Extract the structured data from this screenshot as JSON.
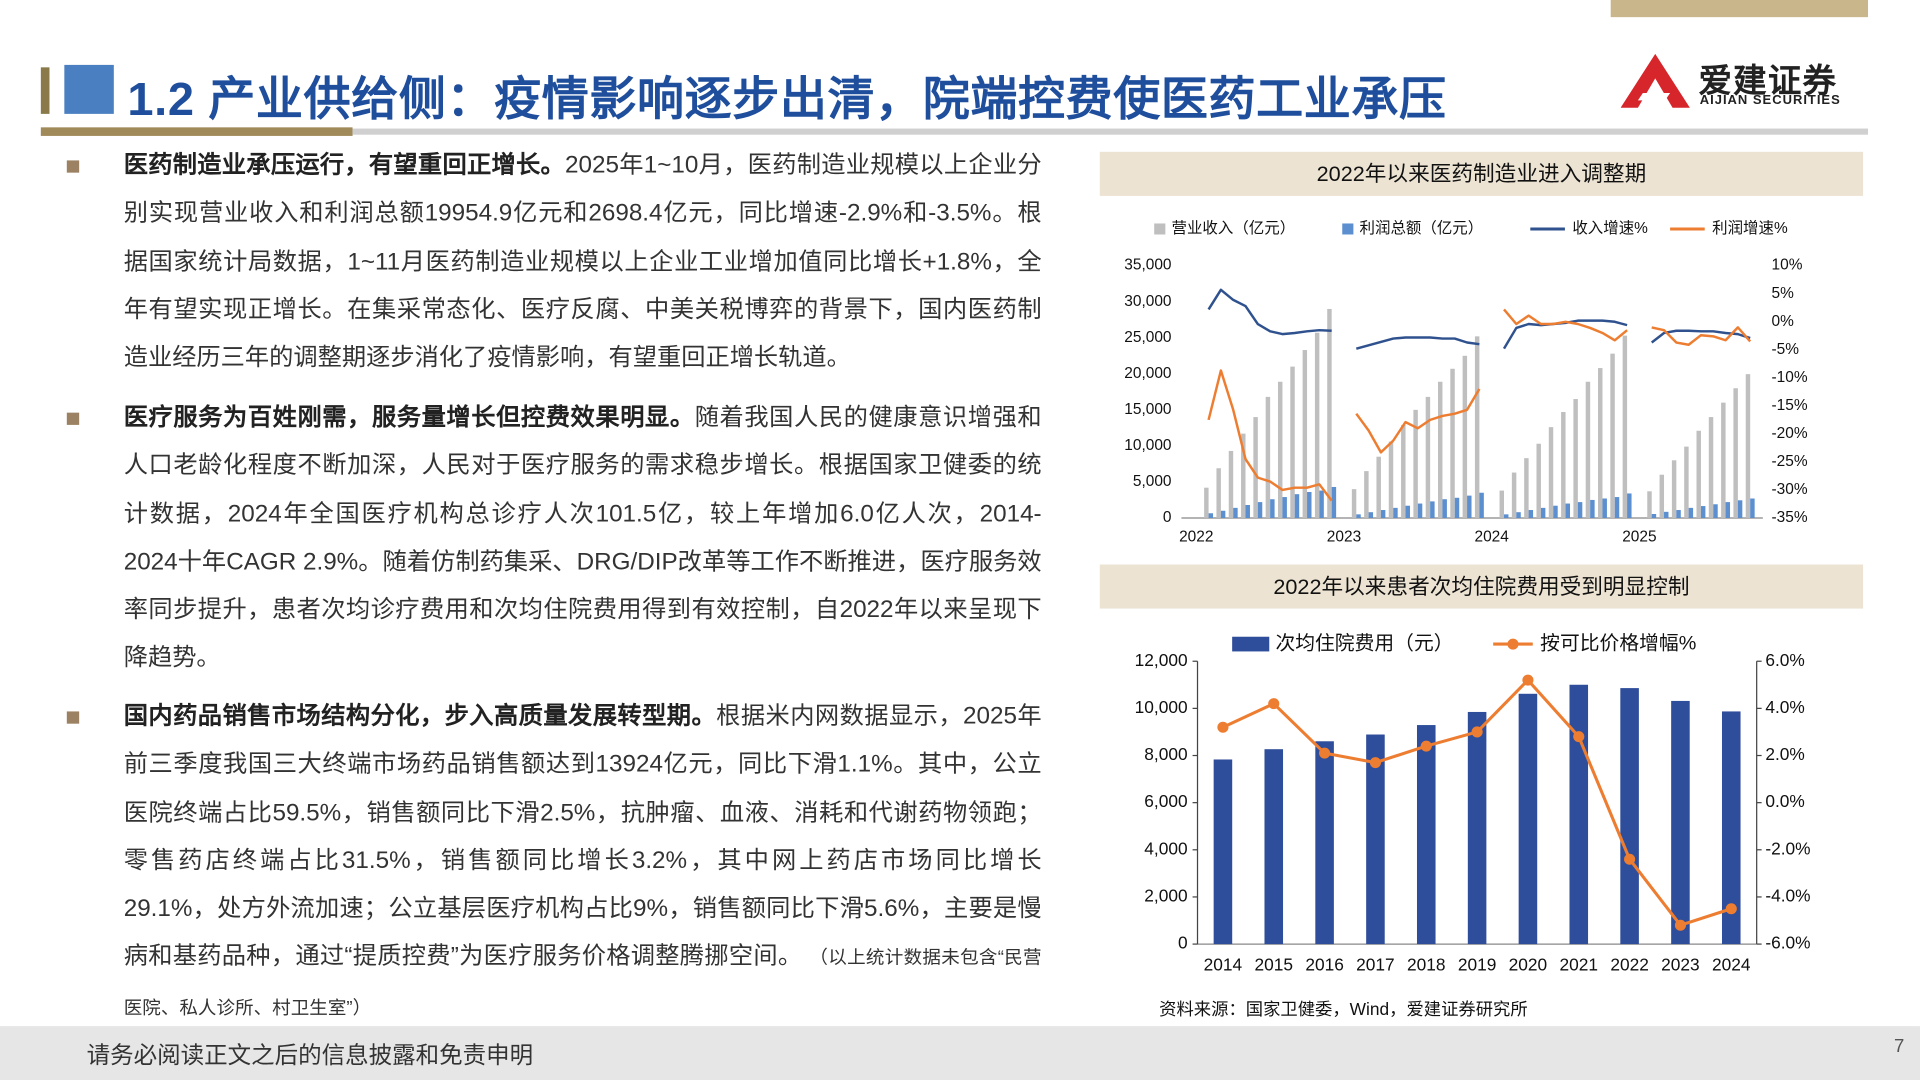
{
  "header": {
    "title": "1.2 产业供给侧：疫情影响逐步出清，院端控费使医药工业承压",
    "logo_cn": "爱建证券",
    "logo_en": "AIJIAN SECURITIES"
  },
  "bullets": [
    {
      "lead": "医药制造业承压运行，有望重回正增长。",
      "body": "2025年1~10月，医药制造业规模以上企业分别实现营业收入和利润总额19954.9亿元和2698.4亿元，同比增速-2.9%和-3.5%。根据国家统计局数据，1~11月医药制造业规模以上企业工业增加值同比增长+1.8%，全年有望实现正增长。在集采常态化、医疗反腐、中美关税博弈的背景下，国内医药制造业经历三年的调整期逐步消化了疫情影响，有望重回正增长轨道。"
    },
    {
      "lead": "医疗服务为百姓刚需，服务量增长但控费效果明显。",
      "body": "随着我国人民的健康意识增强和人口老龄化程度不断加深，人民对于医疗服务的需求稳步增长。根据国家卫健委的统计数据，2024年全国医疗机构总诊疗人次101.5亿，较上年增加6.0亿人次，2014-2024十年CAGR 2.9%。随着仿制药集采、DRG/DIP改革等工作不断推进，医疗服务效率同步提升，患者次均诊疗费用和次均住院费用得到有效控制，自2022年以来呈现下降趋势。"
    },
    {
      "lead": "国内药品销售市场结构分化，步入高质量发展转型期。",
      "body": "根据米内网数据显示，2025年前三季度我国三大终端市场药品销售额达到13924亿元，同比下滑1.1%。其中，公立医院终端占比59.5%，销售额同比下滑2.5%，抗肿瘤、血液、消耗和代谢药物领跑；零售药店终端占比31.5%，销售额同比增长3.2%，其中网上药店市场同比增长29.1%，处方外流加速；公立基层医疗机构占比9%，销售额同比下滑5.6%，主要是慢病和基药品种，通过“提质控费”为医疗服务价格调整腾挪空间。",
      "note": "（以上统计数据未包含“民营医院、私人诊所、村卫生室”）"
    }
  ],
  "chart_data": [
    {
      "type": "combo",
      "title": "2022年以来医药制造业进入调整期",
      "categories": [
        "2022",
        null,
        null,
        null,
        null,
        null,
        null,
        null,
        null,
        null,
        null,
        null,
        "2023",
        null,
        null,
        null,
        null,
        null,
        null,
        null,
        null,
        null,
        null,
        null,
        "2024",
        null,
        null,
        null,
        null,
        null,
        null,
        null,
        null,
        null,
        null,
        null,
        "2025",
        null,
        null,
        null,
        null,
        null,
        null,
        null,
        null,
        null
      ],
      "series": [
        {
          "name": "营业收入（亿元）",
          "type": "bar",
          "color": "#bfbfbf",
          "values": [
            null,
            4200,
            6900,
            9300,
            11700,
            14000,
            16800,
            18900,
            21000,
            23300,
            25700,
            29000,
            null,
            4000,
            6500,
            8500,
            10600,
            12900,
            15000,
            16800,
            18900,
            20700,
            22500,
            25200,
            null,
            3800,
            6300,
            8300,
            10300,
            12600,
            14700,
            16500,
            18900,
            20800,
            22800,
            25300,
            null,
            3700,
            6000,
            8000,
            9900,
            12100,
            14000,
            16000,
            18000,
            19955
          ]
        },
        {
          "name": "利润总额（亿元）",
          "type": "bar",
          "color": "#5b8fd0",
          "values": [
            null,
            650,
            1000,
            1400,
            1800,
            2200,
            2600,
            2900,
            3300,
            3600,
            3800,
            4300,
            null,
            500,
            800,
            1100,
            1400,
            1700,
            2000,
            2300,
            2600,
            2800,
            3100,
            3500,
            null,
            500,
            800,
            1100,
            1400,
            1700,
            2000,
            2200,
            2500,
            2700,
            2900,
            3400,
            null,
            550,
            850,
            1100,
            1400,
            1650,
            1900,
            2200,
            2450,
            2698
          ]
        },
        {
          "name": "收入增速%",
          "type": "line",
          "axis": "y2",
          "color": "#2f528f",
          "values": [
            null,
            2.2,
            5.7,
            3.9,
            2.8,
            -0.4,
            -1.7,
            -2.2,
            -2.0,
            -1.7,
            -1.5,
            -1.6,
            null,
            -4.8,
            -4.2,
            -3.6,
            -3.0,
            -2.8,
            -2.8,
            -2.8,
            -3.0,
            -3.0,
            -3.7,
            -4.0,
            null,
            -4.8,
            -1.1,
            -0.4,
            -0.6,
            -0.4,
            -0.2,
            0.2,
            0.2,
            0.2,
            0.0,
            -0.6,
            null,
            -3.7,
            -2.0,
            -1.6,
            -1.6,
            -1.7,
            -1.7,
            -2.0,
            -2.2,
            -2.9
          ]
        },
        {
          "name": "利润增速%",
          "type": "line",
          "axis": "y2",
          "color": "#ed7d31",
          "values": [
            null,
            -17.5,
            -8.7,
            -15.7,
            -24.5,
            -27.8,
            -28.5,
            -30.0,
            -29.6,
            -29.6,
            -29.0,
            -31.9,
            null,
            -16.4,
            -19.4,
            -23.3,
            -21.2,
            -17.9,
            -19.0,
            -17.5,
            -16.8,
            -16.4,
            -15.7,
            -12.0,
            null,
            2.2,
            -0.4,
            1.1,
            -0.4,
            -0.4,
            0.0,
            -0.4,
            -1.1,
            -2.0,
            -3.3,
            -1.5,
            null,
            -1.0,
            -1.5,
            -3.7,
            -4.1,
            -2.4,
            -2.6,
            -3.3,
            -1.0,
            -3.5
          ]
        }
      ],
      "ylim": [
        0,
        35000
      ],
      "yticks": [
        0,
        {
          "value": 5000,
          "label": "5,000"
        },
        {
          "value": 10000,
          "label": "10,000"
        },
        {
          "value": 15000,
          "label": "15,000"
        },
        {
          "value": 20000,
          "label": "20,000"
        },
        {
          "value": 25000,
          "label": "25,000"
        },
        {
          "value": 30000,
          "label": "30,000"
        },
        {
          "value": 35000,
          "label": "35,000"
        }
      ],
      "y2lim": [
        -35,
        10
      ],
      "y2ticks": [
        {
          "value": -35,
          "label": "-35%"
        },
        {
          "value": -30,
          "label": "-30%"
        },
        {
          "value": -25,
          "label": "-25%"
        },
        {
          "value": -20,
          "label": "-20%"
        },
        {
          "value": -15,
          "label": "-15%"
        },
        {
          "value": -10,
          "label": "-10%"
        },
        {
          "value": -5,
          "label": "-5%"
        },
        {
          "value": 0,
          "label": "0%"
        },
        {
          "value": 5,
          "label": "5%"
        },
        {
          "value": 10,
          "label": "10%"
        }
      ],
      "grid": false,
      "markers": false
    },
    {
      "type": "combo",
      "title": "2022年以来患者次均住院费用受到明显控制",
      "categories": [
        "2014",
        "2015",
        "2016",
        "2017",
        "2018",
        "2019",
        "2020",
        "2021",
        "2022",
        "2023",
        "2024"
      ],
      "series": [
        {
          "name": "次均住院费用（元）",
          "type": "bar",
          "color": "#2e4d9a",
          "values": [
            7832,
            8268,
            8604,
            8891,
            9292,
            9848,
            10619,
            11002,
            10860,
            10316,
            9870
          ]
        },
        {
          "name": "按可比价格增幅%",
          "type": "line",
          "axis": "y2",
          "color": "#ed7d31",
          "values": [
            3.2,
            4.2,
            2.1,
            1.7,
            2.4,
            3.0,
            5.2,
            2.8,
            -2.4,
            -5.2,
            -4.5
          ]
        }
      ],
      "ylim": [
        0,
        12000
      ],
      "yticks": [
        0,
        {
          "value": 2000,
          "label": "2,000"
        },
        {
          "value": 4000,
          "label": "4,000"
        },
        {
          "value": 6000,
          "label": "6,000"
        },
        {
          "value": 8000,
          "label": "8,000"
        },
        {
          "value": 10000,
          "label": "10,000"
        },
        {
          "value": 12000,
          "label": "12,000"
        }
      ],
      "y2lim": [
        -6,
        6
      ],
      "y2ticks": [
        {
          "value": -6,
          "label": "-6.0%"
        },
        {
          "value": -4,
          "label": "-4.0%"
        },
        {
          "value": -2,
          "label": "-2.0%"
        },
        {
          "value": 0,
          "label": "0.0%"
        },
        {
          "value": 2,
          "label": "2.0%"
        },
        {
          "value": 4,
          "label": "4.0%"
        },
        {
          "value": 6,
          "label": "6.0%"
        }
      ],
      "grid": false,
      "markers": true
    }
  ],
  "source": "资料来源：国家卫健委，Wind，爱建证券研究所",
  "footer": {
    "disclaimer": "请务必阅读正文之后的信息披露和免责申明",
    "page_number": 7
  }
}
